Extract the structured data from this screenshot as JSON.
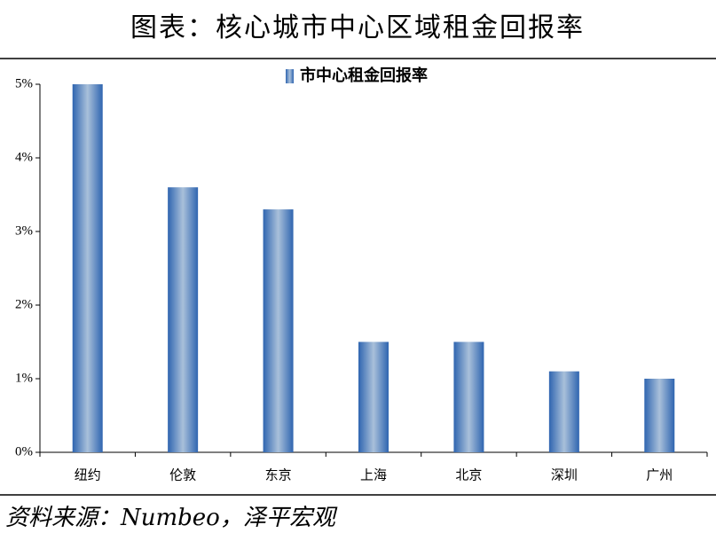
{
  "header": {
    "title": "图表：核心城市中心区域租金回报率"
  },
  "chart_data": {
    "type": "bar",
    "categories": [
      "纽约",
      "伦敦",
      "东京",
      "上海",
      "北京",
      "深圳",
      "广州"
    ],
    "series": [
      {
        "name": "市中心租金回报率",
        "color": "#2f65b0",
        "values": [
          5.0,
          3.6,
          3.3,
          1.5,
          1.5,
          1.1,
          1.0
        ]
      }
    ],
    "ylim": [
      0,
      5
    ],
    "yticks": [
      {
        "value": 0,
        "label": "0%"
      },
      {
        "value": 1,
        "label": "1%"
      },
      {
        "value": 2,
        "label": "2%"
      },
      {
        "value": 3,
        "label": "3%"
      },
      {
        "value": 4,
        "label": "4%"
      },
      {
        "value": 5,
        "label": "5%"
      }
    ],
    "grid": false,
    "legend": "top"
  },
  "footer": {
    "source": "资料来源：Numbeo，泽平宏观"
  }
}
